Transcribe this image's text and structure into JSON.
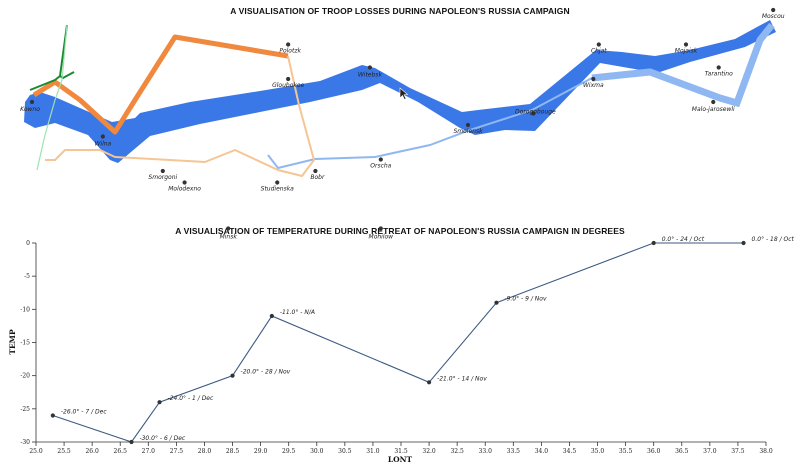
{
  "map": {
    "title": "A VISUALISATION OF TROOP LOSSES DURING NAPOLEON'S RUSSIA CAMPAIGN"
  },
  "temperature": {
    "title": "A VISUALISATION OF TEMPERATURE DURING RETREAT OF NAPOLEON'S RUSSIA CAMPAIGN IN DEGREES"
  },
  "colors": {
    "advance_main": "#3b78e7",
    "retreat_main": "#8fb8f2",
    "advance_north": "#f0883e",
    "retreat_north": "#f5c594",
    "advance_small": "#1a8a2e",
    "retreat_small": "#9be3b0",
    "temp_line": "#3c5a82"
  },
  "chart_data": [
    {
      "type": "flow-map",
      "title": "A VISUALISATION OF TROOP LOSSES DURING NAPOLEON'S RUSSIA CAMPAIGN",
      "cities": [
        {
          "name": "Kowno",
          "lon": 24.0,
          "lat": 55.0
        },
        {
          "name": "Wilna",
          "lon": 25.3,
          "lat": 54.7
        },
        {
          "name": "Smorgoni",
          "lon": 26.4,
          "lat": 54.4
        },
        {
          "name": "Molodexno",
          "lon": 26.8,
          "lat": 54.3
        },
        {
          "name": "Gloubokoe",
          "lon": 28.7,
          "lat": 55.2
        },
        {
          "name": "Minsk",
          "lon": 27.6,
          "lat": 53.9
        },
        {
          "name": "Studienska",
          "lon": 28.5,
          "lat": 54.3
        },
        {
          "name": "Polotzk",
          "lon": 28.7,
          "lat": 55.5
        },
        {
          "name": "Bobr",
          "lon": 29.2,
          "lat": 54.4
        },
        {
          "name": "Witebsk",
          "lon": 30.2,
          "lat": 55.3
        },
        {
          "name": "Orscha",
          "lon": 30.4,
          "lat": 54.5
        },
        {
          "name": "Mohilow",
          "lon": 30.4,
          "lat": 53.9
        },
        {
          "name": "Smolensk",
          "lon": 32.0,
          "lat": 54.8
        },
        {
          "name": "Dorogobouge",
          "lon": 33.2,
          "lat": 54.9
        },
        {
          "name": "Wixma",
          "lon": 34.3,
          "lat": 55.2
        },
        {
          "name": "Chjat",
          "lon": 34.4,
          "lat": 55.5
        },
        {
          "name": "Mojaisk",
          "lon": 36.0,
          "lat": 55.5
        },
        {
          "name": "Moscou",
          "lon": 37.6,
          "lat": 55.8
        },
        {
          "name": "Tarantino",
          "lon": 36.6,
          "lat": 55.3
        },
        {
          "name": "Malo-jarosewli",
          "lon": 36.5,
          "lat": 55.0
        }
      ]
    },
    {
      "type": "line",
      "title": "A VISUALISATION OF TEMPERATURE DURING RETREAT OF NAPOLEON'S RUSSIA CAMPAIGN IN DEGREES",
      "xlabel": "LONT",
      "ylabel": "TEMP",
      "xlim": [
        25.0,
        38.0
      ],
      "ylim": [
        -30,
        0
      ],
      "x_ticks": [
        "25.0",
        "25.5",
        "26.0",
        "26.5",
        "27.0",
        "27.5",
        "28.0",
        "28.5",
        "29.0",
        "29.5",
        "30.0",
        "30.5",
        "31.0",
        "31.5",
        "32.0",
        "32.5",
        "33.0",
        "33.5",
        "34.0",
        "34.5",
        "35.0",
        "35.5",
        "36.0",
        "36.5",
        "37.0",
        "37.5",
        "38.0"
      ],
      "y_ticks": [
        "0",
        "-5",
        "-10",
        "-15",
        "-20",
        "-25",
        "-30"
      ],
      "points": [
        {
          "x": 37.6,
          "y": 0,
          "label": "0.0° - 18 / Oct"
        },
        {
          "x": 36.0,
          "y": 0,
          "label": "0.0° - 24 / Oct"
        },
        {
          "x": 33.2,
          "y": -9,
          "label": "-9.0° - 9 / Nov"
        },
        {
          "x": 32.0,
          "y": -21,
          "label": "-21.0° - 14 / Nov"
        },
        {
          "x": 29.2,
          "y": -11,
          "label": "-11.0° - N/A"
        },
        {
          "x": 28.5,
          "y": -20,
          "label": "-20.0° - 28 / Nov"
        },
        {
          "x": 27.2,
          "y": -24,
          "label": "-24.0° - 1 / Dec"
        },
        {
          "x": 26.7,
          "y": -30,
          "label": "-30.0° - 6 / Dec"
        },
        {
          "x": 25.3,
          "y": -26,
          "label": "-26.0° - 7 / Dec"
        }
      ]
    }
  ]
}
